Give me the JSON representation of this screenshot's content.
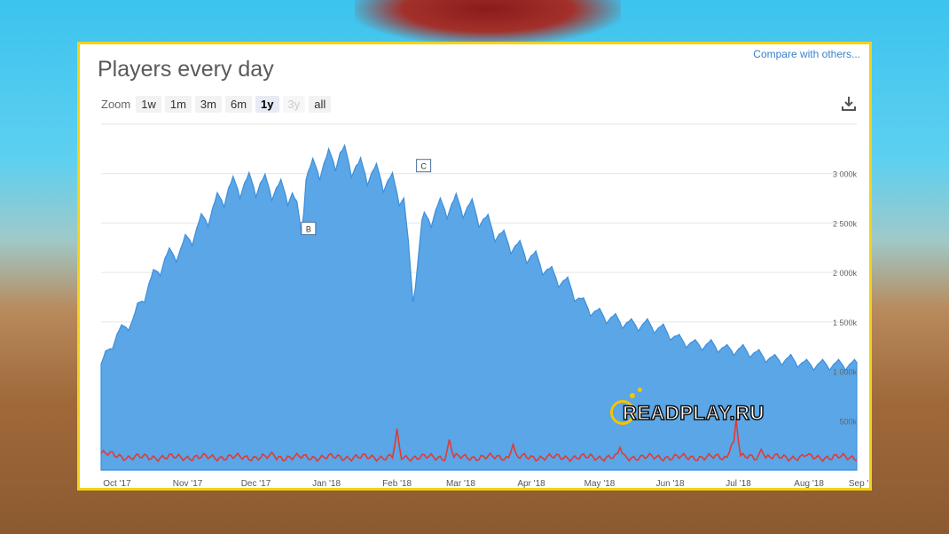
{
  "header": {
    "title": "Players every day",
    "compare_label": "Compare with others..."
  },
  "zoom": {
    "label": "Zoom",
    "options": [
      "1w",
      "1m",
      "3m",
      "6m",
      "1y",
      "3y",
      "all"
    ],
    "active": "1y",
    "disabled": [
      "3y"
    ]
  },
  "watermark": {
    "text": "READPLAY.RU"
  },
  "colors": {
    "area": "#5aa6e6",
    "areaLine": "#3d8fdc",
    "red": "#e23a32",
    "frame": "#f2d21b"
  },
  "chart_data": {
    "type": "area",
    "title": "Players every day",
    "x_ticks": [
      "Oct '17",
      "Nov '17",
      "Dec '17",
      "Jan '18",
      "Feb '18",
      "Mar '18",
      "Apr '18",
      "May '18",
      "Jun '18",
      "Jul '18",
      "Aug '18",
      "Sep '18"
    ],
    "y_ticks": [
      "500k",
      "1 000k",
      "1 500k",
      "2 000k",
      "2 500k",
      "3 000k"
    ],
    "ylim": [
      0,
      3500
    ],
    "unit": "k",
    "grid": true,
    "markers": [
      {
        "label": "B",
        "date": "Dec '17 +26d"
      },
      {
        "label": "C",
        "date": "Feb '18 +11d"
      }
    ],
    "series": [
      {
        "type": "area",
        "anchors": [
          [
            0,
            1050
          ],
          [
            7,
            1350
          ],
          [
            14,
            1500
          ],
          [
            21,
            1850
          ],
          [
            28,
            2100
          ],
          [
            35,
            2200
          ],
          [
            42,
            2400
          ],
          [
            49,
            2600
          ],
          [
            56,
            2800
          ],
          [
            63,
            2850
          ],
          [
            70,
            2850
          ],
          [
            77,
            2800
          ],
          [
            84,
            2750
          ],
          [
            88,
            2400
          ],
          [
            90,
            2950
          ],
          [
            98,
            3050
          ],
          [
            105,
            3150
          ],
          [
            113,
            3000
          ],
          [
            120,
            2950
          ],
          [
            128,
            2850
          ],
          [
            133,
            2700
          ],
          [
            137,
            1700
          ],
          [
            141,
            2450
          ],
          [
            148,
            2600
          ],
          [
            156,
            2650
          ],
          [
            163,
            2600
          ],
          [
            170,
            2450
          ],
          [
            177,
            2300
          ],
          [
            184,
            2200
          ],
          [
            191,
            2100
          ],
          [
            198,
            1950
          ],
          [
            205,
            1850
          ],
          [
            212,
            1650
          ],
          [
            219,
            1550
          ],
          [
            226,
            1500
          ],
          [
            233,
            1450
          ],
          [
            240,
            1450
          ],
          [
            247,
            1400
          ],
          [
            254,
            1300
          ],
          [
            261,
            1250
          ],
          [
            268,
            1250
          ],
          [
            275,
            1200
          ],
          [
            282,
            1200
          ],
          [
            289,
            1150
          ],
          [
            296,
            1100
          ],
          [
            303,
            1100
          ],
          [
            310,
            1050
          ],
          [
            316,
            1050
          ]
        ],
        "weekly_peak_amplitude": 140
      },
      {
        "type": "line",
        "baseline": 130,
        "spikes": [
          [
            75,
            180
          ],
          [
            130,
            420
          ],
          [
            153,
            310
          ],
          [
            181,
            260
          ],
          [
            228,
            230
          ],
          [
            277,
            260
          ],
          [
            279,
            520
          ],
          [
            290,
            210
          ],
          [
            310,
            150
          ]
        ]
      }
    ]
  }
}
